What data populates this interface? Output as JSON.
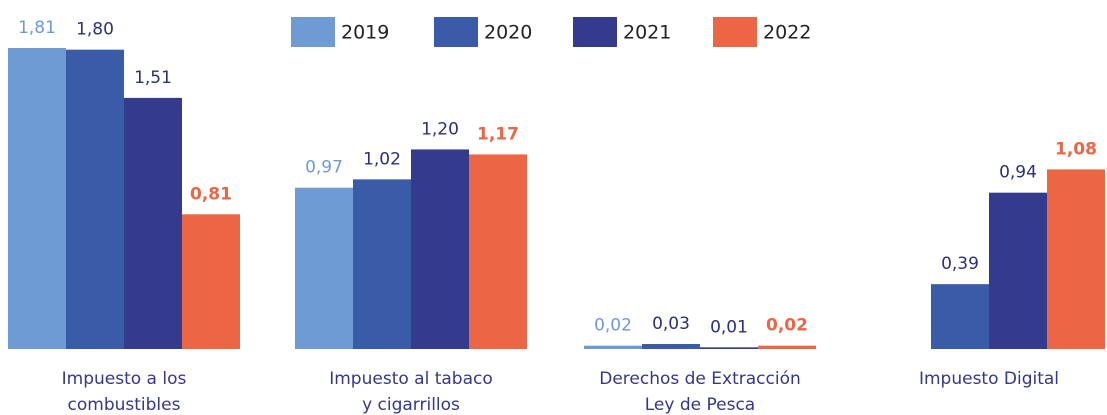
{
  "chart_data": {
    "type": "bar",
    "categories": [
      [
        "Impuesto a los",
        "combustibles"
      ],
      [
        "Impuesto al tabaco",
        "y cigarrillos"
      ],
      [
        "Derechos de Extracción",
        "Ley de Pesca"
      ],
      [
        "Impuesto Digital"
      ]
    ],
    "series": [
      {
        "name": "2019",
        "color": "#6f9bd5",
        "values": [
          1.81,
          0.97,
          0.02,
          null
        ],
        "value_labels": [
          "1,81",
          "0,97",
          "0,02",
          null
        ]
      },
      {
        "name": "2020",
        "color": "#3a5ca8",
        "values": [
          1.8,
          1.02,
          0.03,
          0.39
        ],
        "value_labels": [
          "1,80",
          "1,02",
          "0,03",
          "0,39"
        ]
      },
      {
        "name": "2021",
        "color": "#343a8c",
        "values": [
          1.51,
          1.2,
          0.01,
          0.94
        ],
        "value_labels": [
          "1,51",
          "1,20",
          "0,01",
          "0,94"
        ]
      },
      {
        "name": "2022",
        "color": "#ec6646",
        "values": [
          0.81,
          1.17,
          0.02,
          1.08
        ],
        "value_labels": [
          "0,81",
          "1,17",
          "0,02",
          "1,08"
        ]
      }
    ],
    "legend": "top"
  }
}
